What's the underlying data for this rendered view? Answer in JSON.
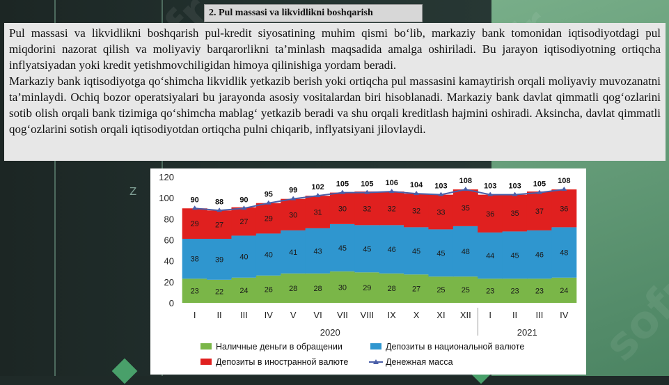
{
  "slide": {
    "heading": "2. Pul massasi va likvidlikni boshqarish",
    "paragraph1": "Pul massasi va likvidlikni boshqarish pul-kredit siyosatining muhim qismi bo‘lib, markaziy bank tomonidan iqtisodiyotdagi pul miqdorini nazorat qilish va moliyaviy barqarorlikni ta’minlash maqsadida amalga oshiriladi. Bu jarayon iqtisodiyotning ortiqcha inflyatsiyadan yoki kredit yetishmovchiligidan himoya qilinishiga yordam beradi.",
    "paragraph2": "Markaziy bank iqtisodiyotga qo‘shimcha likvidlik yetkazib berish yoki ortiqcha pul massasini kamaytirish orqali moliyaviy muvozanatni ta’minlaydi. Ochiq bozor operatsiyalari bu jarayonda asosiy vositalardan biri hisoblanadi. Markaziy bank davlat qimmatli qog‘ozlarini sotib olish orqali bank tizimiga qo‘shimcha mablag‘ yetkazib beradi va shu orqali kreditlash hajmini oshiradi. Aksincha, davlat qimmatli qog‘ozlarini sotish orqali iqtisodiyotdan ortiqcha pulni chiqarib, inflyatsiyani jilovlaydi.",
    "side_mark": "Z",
    "watermark": "sofr"
  },
  "colors": {
    "cash": "#7ab648",
    "deposits_national": "#2f96cf",
    "deposits_foreign": "#e0201f",
    "money_supply": "#4a5fa8"
  },
  "chart_data": {
    "type": "bar",
    "stacked": true,
    "categories": [
      "I",
      "II",
      "III",
      "IV",
      "V",
      "VI",
      "VII",
      "VIII",
      "IX",
      "X",
      "XI",
      "XII",
      "I",
      "II",
      "III",
      "IV"
    ],
    "groups": [
      {
        "label": "2020",
        "from": 0,
        "to": 11
      },
      {
        "label": "2021",
        "from": 12,
        "to": 15
      }
    ],
    "ylim": [
      0,
      120
    ],
    "yticks": [
      0,
      20,
      40,
      60,
      80,
      100,
      120
    ],
    "grid": false,
    "legend_position": "bottom",
    "series": [
      {
        "name": "Наличные деньги в обращении",
        "kind": "bar",
        "color_key": "cash",
        "values": [
          23,
          22,
          24,
          26,
          28,
          28,
          30,
          29,
          28,
          27,
          25,
          25,
          23,
          23,
          23,
          24
        ]
      },
      {
        "name": "Депозиты в национальной валюте",
        "kind": "bar",
        "color_key": "deposits_national",
        "values": [
          38,
          39,
          40,
          40,
          41,
          43,
          45,
          45,
          46,
          45,
          45,
          48,
          44,
          45,
          46,
          48
        ]
      },
      {
        "name": "Депозиты в иностранной валюте",
        "kind": "bar",
        "color_key": "deposits_foreign",
        "values": [
          29,
          27,
          27,
          29,
          30,
          31,
          30,
          32,
          32,
          32,
          33,
          35,
          36,
          35,
          37,
          36
        ]
      },
      {
        "name": "Денежная масса",
        "kind": "line",
        "color_key": "money_supply",
        "values": [
          90,
          88,
          90,
          95,
          99,
          102,
          105,
          105,
          106,
          104,
          103,
          108,
          103,
          103,
          105,
          108
        ]
      }
    ]
  }
}
